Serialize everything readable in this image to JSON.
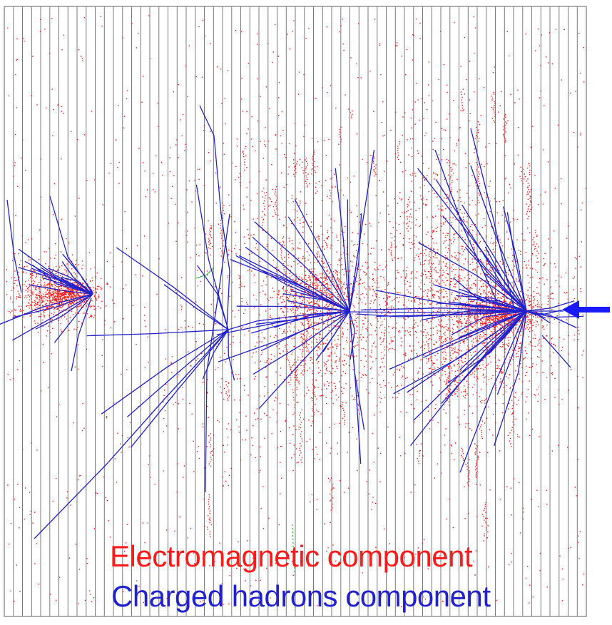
{
  "legend": {
    "electromagnetic_label": "Electromagnetic component",
    "hadron_label": "Charged hadrons component"
  },
  "colors": {
    "electromagnetic": "#ff1a1a",
    "hadron": "#2222cc",
    "arrow": "#1a1aff",
    "plates": "#7a7a7a",
    "background": "#ffffff",
    "secondary_track": "#22aa22"
  },
  "icons": {
    "beam_direction": "left-arrow-icon"
  }
}
